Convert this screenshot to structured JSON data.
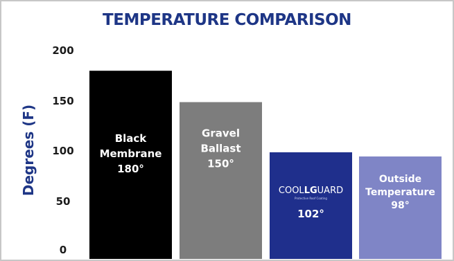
{
  "chart_data": {
    "type": "bar",
    "title": "TEMPERATURE COMPARISON",
    "ylabel": "Degrees (F)",
    "xlabel": "",
    "ylim": [
      0,
      200
    ],
    "yticks": [
      "0",
      "50",
      "100",
      "150",
      "200"
    ],
    "grid": false,
    "categories": [
      "Black Membrane",
      "Gravel Ballast",
      "COOLGUARD",
      "Outside Temperature"
    ],
    "values": [
      180,
      150,
      102,
      98
    ],
    "bars": [
      {
        "lines": [
          "Black",
          "Membrane"
        ],
        "value_label": "180°",
        "color": "#000000"
      },
      {
        "lines": [
          "Gravel",
          "Ballast"
        ],
        "value_label": "150°",
        "color": "#7d7d7d"
      },
      {
        "logo": {
          "prefix": "COOL",
          "strong": "LG",
          "suffix": "UARD",
          "sub": "Protective Roof Coating"
        },
        "value_label": "102°",
        "color": "#1f2f8c"
      },
      {
        "lines": [
          "Outside",
          "Temperature"
        ],
        "value_label": "98°",
        "color": "#7f85c6"
      }
    ]
  },
  "colors": {
    "title": "#1e3686",
    "ylabel": "#1e3686",
    "ticks": "#1a1a1a"
  }
}
